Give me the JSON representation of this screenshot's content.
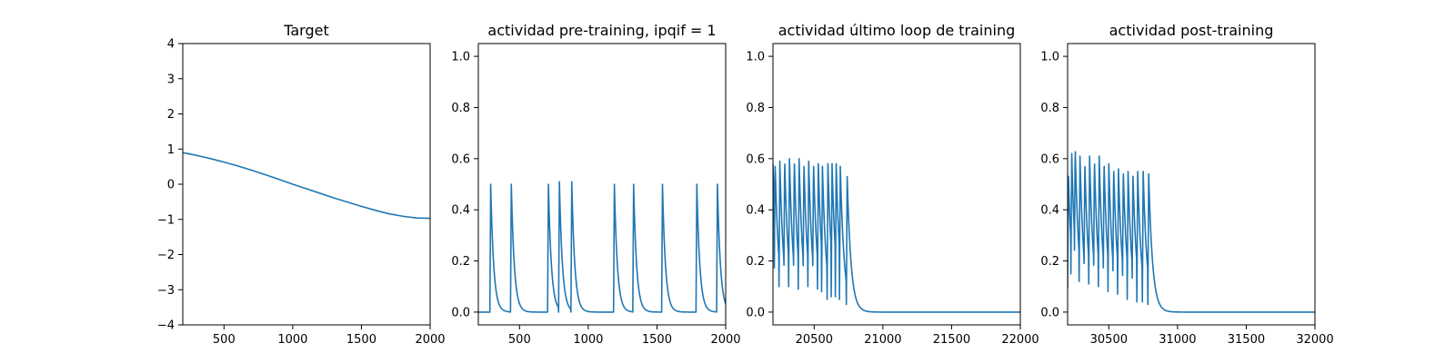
{
  "colors": {
    "line": "#1f77b4",
    "axes": "#000000",
    "background": "#ffffff"
  },
  "chart_data": [
    {
      "type": "line",
      "title": "Target",
      "xlim": [
        200,
        2000
      ],
      "ylim": [
        -4,
        4
      ],
      "xticks": [
        500,
        1000,
        1500,
        2000
      ],
      "yticks": [
        -4,
        -3,
        -2,
        -1,
        0,
        1,
        2,
        3,
        4
      ],
      "series": [
        {
          "x": [
            200,
            300,
            400,
            500,
            600,
            700,
            800,
            900,
            1000,
            1100,
            1200,
            1300,
            1400,
            1500,
            1600,
            1700,
            1800,
            1900,
            2000
          ],
          "y": [
            0.9,
            0.82,
            0.73,
            0.63,
            0.52,
            0.4,
            0.27,
            0.14,
            0.0,
            -0.13,
            -0.26,
            -0.39,
            -0.51,
            -0.63,
            -0.74,
            -0.84,
            -0.91,
            -0.96,
            -0.97
          ]
        }
      ],
      "grid": false
    },
    {
      "type": "line",
      "title": "actividad pre-training, ipqif = 1",
      "xlim": [
        200,
        2000
      ],
      "ylim": [
        -0.05,
        1.05
      ],
      "xticks": [
        500,
        1000,
        1500,
        2000
      ],
      "yticks": [
        0.0,
        0.2,
        0.4,
        0.6,
        0.8,
        1.0
      ],
      "series": [
        {
          "spikes": {
            "times": [
              290,
              440,
              710,
              790,
              880,
              1190,
              1330,
              1540,
              1790,
              1940
            ],
            "peaks": [
              0.5,
              0.5,
              0.5,
              0.51,
              0.51,
              0.5,
              0.5,
              0.5,
              0.5,
              0.5
            ],
            "baseline": 0.0,
            "decay": 22
          }
        }
      ],
      "grid": false
    },
    {
      "type": "line",
      "title": "actividad último loop de training",
      "xlim": [
        20200,
        22000
      ],
      "ylim": [
        -0.05,
        1.05
      ],
      "xticks": [
        20500,
        21000,
        21500,
        22000
      ],
      "yticks": [
        0.0,
        0.2,
        0.4,
        0.6,
        0.8,
        1.0
      ],
      "series": [
        {
          "spikes": {
            "times": [
              20200,
              20215,
              20250,
              20285,
              20320,
              20355,
              20390,
              20425,
              20460,
              20495,
              20530,
              20560,
              20600,
              20630,
              20660,
              20690,
              20740
            ],
            "peaks": [
              0.58,
              0.59,
              0.59,
              0.6,
              0.6,
              0.6,
              0.6,
              0.59,
              0.59,
              0.59,
              0.58,
              0.57,
              0.58,
              0.58,
              0.58,
              0.57,
              0.53
            ],
            "troughs": [
              0.35,
              0.09,
              0.1,
              0.1,
              0.1,
              0.1,
              0.09,
              0.1,
              0.1,
              0.1,
              0.09,
              0.08,
              0.05,
              0.06,
              0.06,
              0.05,
              0.03
            ],
            "baseline": 0.0,
            "decay": 28
          }
        }
      ],
      "grid": false
    },
    {
      "type": "line",
      "title": "actividad post-training",
      "xlim": [
        30200,
        32000
      ],
      "ylim": [
        -0.05,
        1.05
      ],
      "xticks": [
        30500,
        31000,
        31500,
        32000
      ],
      "yticks": [
        0.0,
        0.2,
        0.4,
        0.6,
        0.8,
        1.0
      ],
      "series": [
        {
          "spikes": {
            "times": [
              30205,
              30230,
              30255,
              30290,
              30325,
              30360,
              30395,
              30430,
              30465,
              30500,
              30535,
              30570,
              30605,
              30640,
              30675,
              30710,
              30750,
              30790
            ],
            "peaks": [
              0.55,
              0.62,
              0.65,
              0.61,
              0.59,
              0.61,
              0.6,
              0.61,
              0.59,
              0.58,
              0.57,
              0.56,
              0.56,
              0.55,
              0.55,
              0.55,
              0.55,
              0.54
            ],
            "troughs": [
              0.3,
              0.15,
              0.16,
              0.12,
              0.11,
              0.11,
              0.1,
              0.1,
              0.09,
              0.08,
              0.08,
              0.07,
              0.06,
              0.05,
              0.05,
              0.04,
              0.04,
              0.03
            ],
            "baseline": 0.0,
            "decay": 28
          }
        }
      ],
      "grid": false
    }
  ]
}
